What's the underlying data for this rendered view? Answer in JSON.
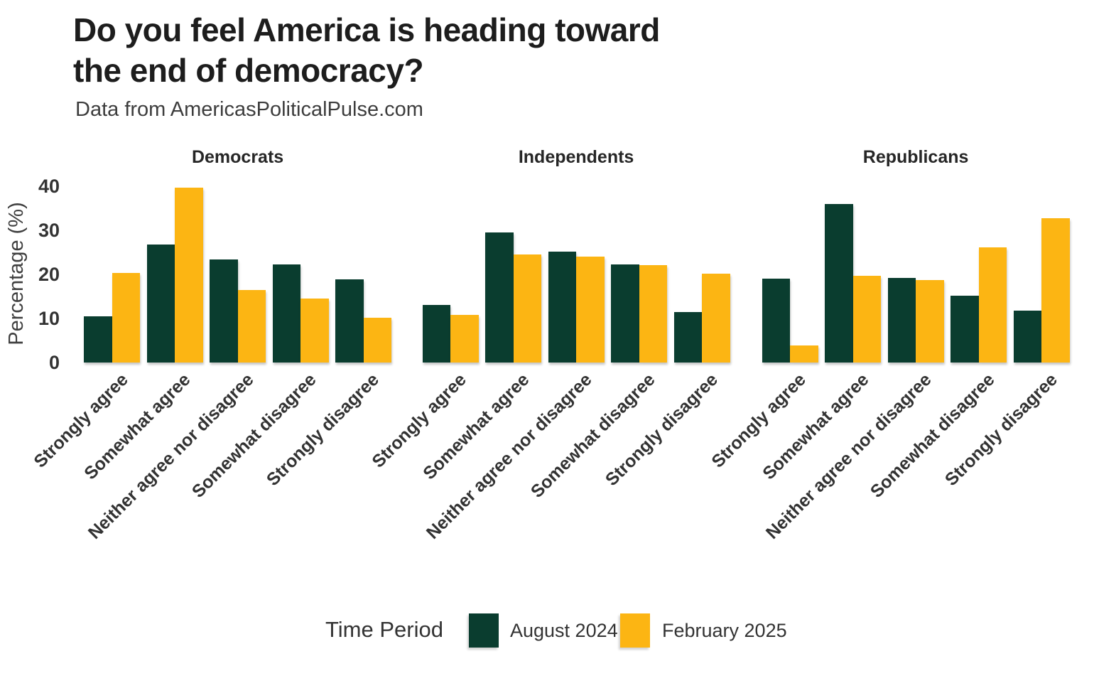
{
  "title": {
    "line1": "Do you feel America is heading toward",
    "line2": "the end of democracy?"
  },
  "subtitle": "Data from AmericasPoliticalPulse.com",
  "legend": {
    "title": "Time Period",
    "entries": [
      {
        "label": "August 2024",
        "color": "#0a3d2f"
      },
      {
        "label": "February 2025",
        "color": "#fcb513"
      }
    ],
    "position": "bottom"
  },
  "chart_data": {
    "type": "bar",
    "grouped": true,
    "title": "Do you feel America is heading toward the end of democracy?",
    "subtitle": "Data from AmericasPoliticalPulse.com",
    "ylabel": "Percentage (%)",
    "xlabel": "",
    "ylim": [
      0,
      40
    ],
    "yticks": [
      0,
      10,
      20,
      30,
      40
    ],
    "grid": false,
    "legend_position": "bottom",
    "categories": [
      "Strongly agree",
      "Somewhat agree",
      "Neither agree nor disagree",
      "Somewhat disagree",
      "Strongly disagree"
    ],
    "facets": [
      {
        "label": "Democrats",
        "series": [
          {
            "name": "August 2024",
            "values": [
              10.5,
              26.7,
              23.4,
              22.2,
              18.8
            ]
          },
          {
            "name": "February 2025",
            "values": [
              20.4,
              39.6,
              16.5,
              14.5,
              10.1
            ]
          }
        ]
      },
      {
        "label": "Independents",
        "series": [
          {
            "name": "August 2024",
            "values": [
              13.1,
              29.5,
              25.2,
              22.3,
              11.5
            ]
          },
          {
            "name": "February 2025",
            "values": [
              10.8,
              24.5,
              24.0,
              22.1,
              20.1
            ]
          }
        ]
      },
      {
        "label": "Republicans",
        "series": [
          {
            "name": "August 2024",
            "values": [
              19.0,
              35.9,
              19.2,
              15.1,
              11.7
            ]
          },
          {
            "name": "February 2025",
            "values": [
              3.9,
              19.6,
              18.7,
              26.1,
              32.7
            ]
          }
        ]
      }
    ]
  }
}
